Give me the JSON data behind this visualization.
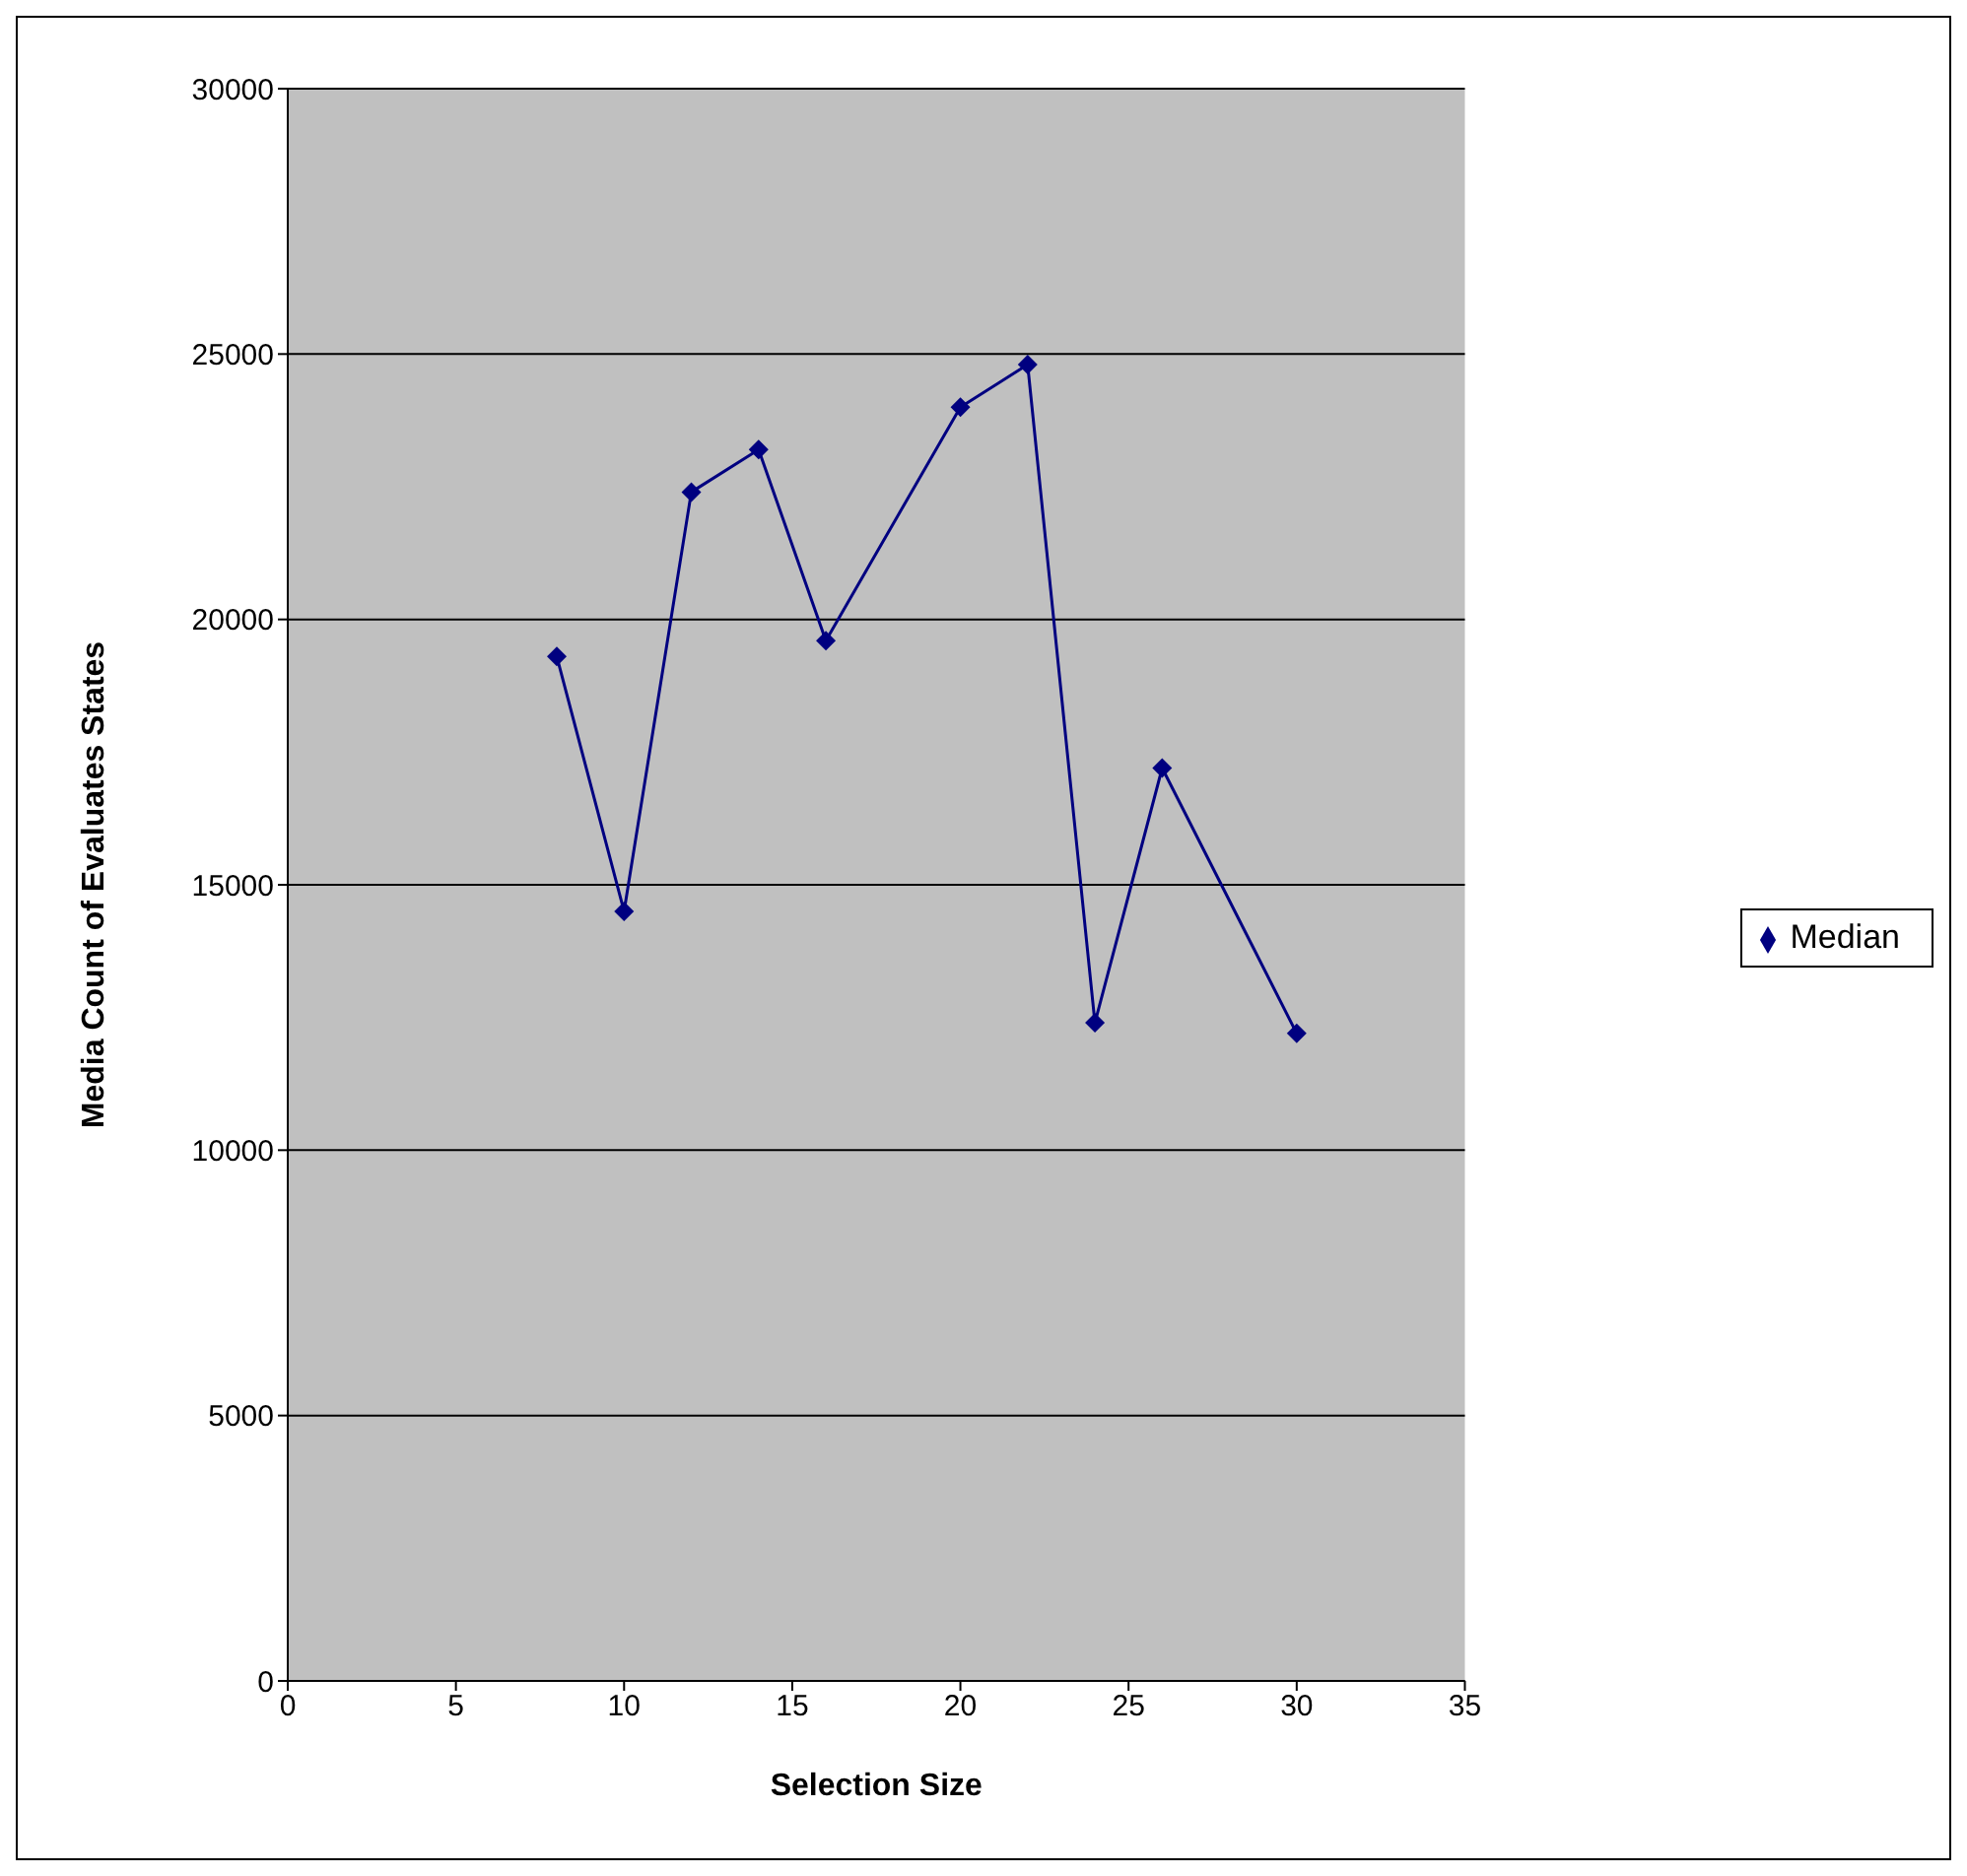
{
  "chart_data": {
    "type": "line",
    "xlabel": "Selection Size",
    "ylabel": "Media Count of Evaluates States",
    "x": [
      8,
      10,
      12,
      14,
      16,
      20,
      22,
      24,
      26,
      30
    ],
    "series": [
      {
        "name": "Median",
        "color": "#000080",
        "values": [
          19300,
          14500,
          22400,
          23200,
          19600,
          24000,
          24800,
          12400,
          17200,
          12200
        ]
      }
    ],
    "xlim": [
      0,
      35
    ],
    "xticks": [
      0,
      5,
      10,
      15,
      20,
      25,
      30,
      35
    ],
    "ylim": [
      0,
      30000
    ],
    "yticks": [
      0,
      5000,
      10000,
      15000,
      20000,
      25000,
      30000
    ],
    "grid": "y",
    "legend": "right",
    "marker": "diamond",
    "line_style": "solid"
  }
}
